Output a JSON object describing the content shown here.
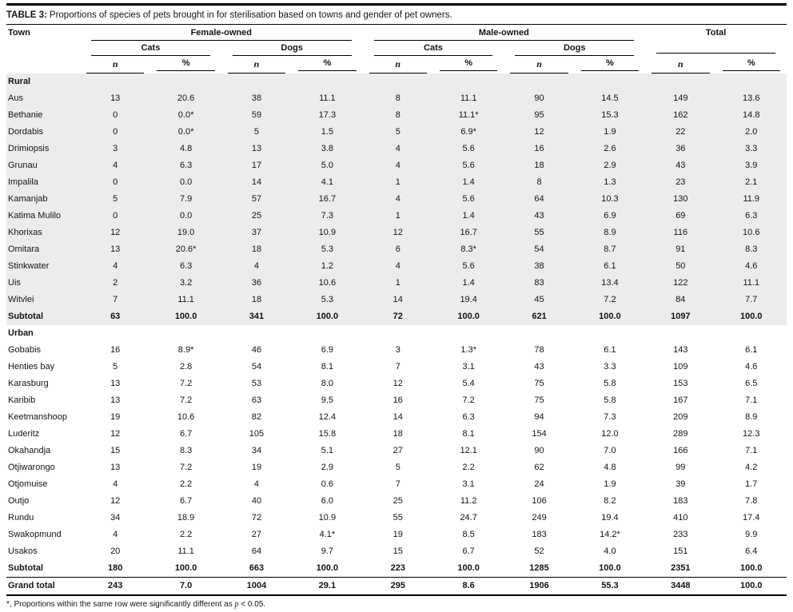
{
  "table": {
    "title_label": "TABLE 3:",
    "title_text": "Proportions of species of pets brought in for sterilisation based on towns and gender of pet owners.",
    "header": {
      "town": "Town",
      "groups": [
        {
          "label": "Female-owned"
        },
        {
          "label": "Male-owned"
        },
        {
          "label": "Total"
        }
      ],
      "subgroups": [
        "Cats",
        "Dogs",
        "Cats",
        "Dogs"
      ],
      "metric_n": "n",
      "metric_pct": "%"
    },
    "sections": [
      {
        "name": "Rural",
        "shaded": true,
        "rows": [
          {
            "town": "Aus",
            "values": [
              "13",
              "20.6",
              "38",
              "11.1",
              "8",
              "11.1",
              "90",
              "14.5",
              "149",
              "13.6"
            ]
          },
          {
            "town": "Bethanie",
            "values": [
              "0",
              "0.0*",
              "59",
              "17.3",
              "8",
              "11.1*",
              "95",
              "15.3",
              "162",
              "14.8"
            ]
          },
          {
            "town": "Dordabis",
            "values": [
              "0",
              "0.0*",
              "5",
              "1.5",
              "5",
              "6.9*",
              "12",
              "1.9",
              "22",
              "2.0"
            ]
          },
          {
            "town": "Drimiopsis",
            "values": [
              "3",
              "4.8",
              "13",
              "3.8",
              "4",
              "5.6",
              "16",
              "2.6",
              "36",
              "3.3"
            ]
          },
          {
            "town": "Grunau",
            "values": [
              "4",
              "6.3",
              "17",
              "5.0",
              "4",
              "5.6",
              "18",
              "2.9",
              "43",
              "3.9"
            ]
          },
          {
            "town": "Impalila",
            "values": [
              "0",
              "0.0",
              "14",
              "4.1",
              "1",
              "1.4",
              "8",
              "1.3",
              "23",
              "2.1"
            ]
          },
          {
            "town": "Kamanjab",
            "values": [
              "5",
              "7.9",
              "57",
              "16.7",
              "4",
              "5.6",
              "64",
              "10.3",
              "130",
              "11.9"
            ]
          },
          {
            "town": "Katima Mulilo",
            "values": [
              "0",
              "0.0",
              "25",
              "7.3",
              "1",
              "1.4",
              "43",
              "6.9",
              "69",
              "6.3"
            ]
          },
          {
            "town": "Khorixas",
            "values": [
              "12",
              "19.0",
              "37",
              "10.9",
              "12",
              "16.7",
              "55",
              "8.9",
              "116",
              "10.6"
            ]
          },
          {
            "town": "Omitara",
            "values": [
              "13",
              "20.6*",
              "18",
              "5.3",
              "6",
              "8.3*",
              "54",
              "8.7",
              "91",
              "8.3"
            ]
          },
          {
            "town": "Stinkwater",
            "values": [
              "4",
              "6.3",
              "4",
              "1.2",
              "4",
              "5.6",
              "38",
              "6.1",
              "50",
              "4.6"
            ]
          },
          {
            "town": "Uis",
            "values": [
              "2",
              "3.2",
              "36",
              "10.6",
              "1",
              "1.4",
              "83",
              "13.4",
              "122",
              "11.1"
            ]
          },
          {
            "town": "Witvlei",
            "values": [
              "7",
              "11.1",
              "18",
              "5.3",
              "14",
              "19.4",
              "45",
              "7.2",
              "84",
              "7.7"
            ]
          }
        ],
        "subtotal": {
          "town": "Subtotal",
          "values": [
            "63",
            "100.0",
            "341",
            "100.0",
            "72",
            "100.0",
            "621",
            "100.0",
            "1097",
            "100.0"
          ]
        }
      },
      {
        "name": "Urban",
        "shaded": false,
        "rows": [
          {
            "town": "Gobabis",
            "values": [
              "16",
              "8.9*",
              "46",
              "6.9",
              "3",
              "1.3*",
              "78",
              "6.1",
              "143",
              "6.1"
            ]
          },
          {
            "town": "Henties bay",
            "values": [
              "5",
              "2.8",
              "54",
              "8.1",
              "7",
              "3.1",
              "43",
              "3.3",
              "109",
              "4.6"
            ]
          },
          {
            "town": "Karasburg",
            "values": [
              "13",
              "7.2",
              "53",
              "8.0",
              "12",
              "5.4",
              "75",
              "5.8",
              "153",
              "6.5"
            ]
          },
          {
            "town": "Karibib",
            "values": [
              "13",
              "7.2",
              "63",
              "9.5",
              "16",
              "7.2",
              "75",
              "5.8",
              "167",
              "7.1"
            ]
          },
          {
            "town": "Keetmanshoop",
            "values": [
              "19",
              "10.6",
              "82",
              "12.4",
              "14",
              "6.3",
              "94",
              "7.3",
              "209",
              "8.9"
            ]
          },
          {
            "town": "Luderitz",
            "values": [
              "12",
              "6.7",
              "105",
              "15.8",
              "18",
              "8.1",
              "154",
              "12.0",
              "289",
              "12.3"
            ]
          },
          {
            "town": "Okahandja",
            "values": [
              "15",
              "8.3",
              "34",
              "5.1",
              "27",
              "12.1",
              "90",
              "7.0",
              "166",
              "7.1"
            ]
          },
          {
            "town": "Otjiwarongo",
            "values": [
              "13",
              "7.2",
              "19",
              "2.9",
              "5",
              "2.2",
              "62",
              "4.8",
              "99",
              "4.2"
            ]
          },
          {
            "town": "Otjomuise",
            "values": [
              "4",
              "2.2",
              "4",
              "0.6",
              "7",
              "3.1",
              "24",
              "1.9",
              "39",
              "1.7"
            ]
          },
          {
            "town": "Outjo",
            "values": [
              "12",
              "6.7",
              "40",
              "6.0",
              "25",
              "11.2",
              "106",
              "8.2",
              "183",
              "7.8"
            ]
          },
          {
            "town": "Rundu",
            "values": [
              "34",
              "18.9",
              "72",
              "10.9",
              "55",
              "24.7",
              "249",
              "19.4",
              "410",
              "17.4"
            ]
          },
          {
            "town": "Swakopmund",
            "values": [
              "4",
              "2.2",
              "27",
              "4.1*",
              "19",
              "8.5",
              "183",
              "14.2*",
              "233",
              "9.9"
            ]
          },
          {
            "town": "Usakos",
            "values": [
              "20",
              "11.1",
              "64",
              "9.7",
              "15",
              "6.7",
              "52",
              "4.0",
              "151",
              "6.4"
            ]
          }
        ],
        "subtotal": {
          "town": "Subtotal",
          "values": [
            "180",
            "100.0",
            "663",
            "100.0",
            "223",
            "100.0",
            "1285",
            "100.0",
            "2351",
            "100.0"
          ]
        }
      }
    ],
    "grand_total": {
      "town": "Grand total",
      "values": [
        "243",
        "7.0",
        "1004",
        "29.1",
        "295",
        "8.6",
        "1906",
        "55.3",
        "3448",
        "100.0"
      ]
    },
    "footnote": {
      "pre": "*, Proportions within the same row were significantly different as ",
      "p": "p",
      "post": " < 0.05."
    }
  }
}
